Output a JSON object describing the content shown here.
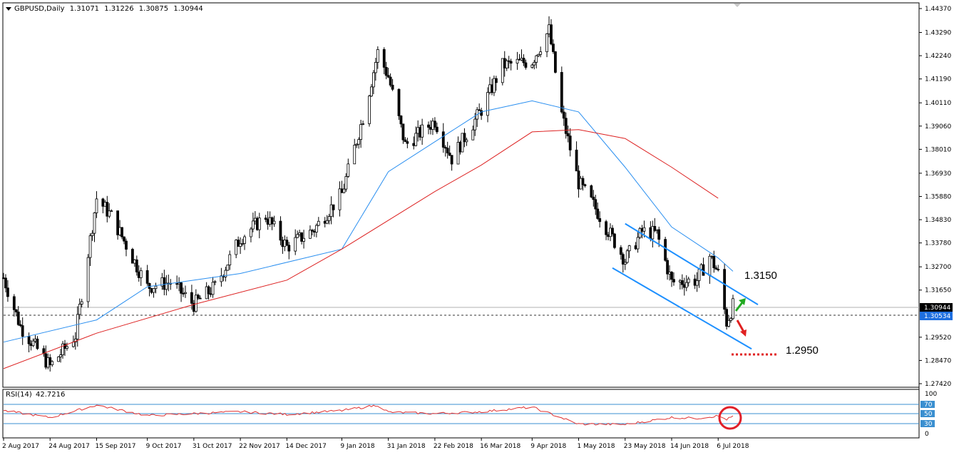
{
  "header": {
    "symbol": "GBPUSD,Daily",
    "open": "1.31071",
    "high": "1.31226",
    "low": "1.30875",
    "close": "1.30944"
  },
  "rsi": {
    "label": "RSI(14)",
    "value": "42.7216",
    "levels": [
      70,
      50,
      30
    ],
    "scale_top": "100",
    "scale_bottom": "0"
  },
  "price_axis": {
    "ticks": [
      "1.44370",
      "1.43290",
      "1.42240",
      "1.41190",
      "1.40110",
      "1.39060",
      "1.38010",
      "1.36930",
      "1.35880",
      "1.34830",
      "1.33780",
      "1.32700",
      "1.31650",
      "1.29520",
      "1.28470",
      "1.27420"
    ],
    "current_price": "1.30944",
    "line_price": "1.30534"
  },
  "date_axis": {
    "labels": [
      "2 Aug 2017",
      "24 Aug 2017",
      "15 Sep 2017",
      "9 Oct 2017",
      "31 Oct 2017",
      "22 Nov 2017",
      "14 Dec 2017",
      "9 Jan 2018",
      "31 Jan 2018",
      "22 Feb 2018",
      "16 Mar 2018",
      "9 Apr 2018",
      "1 May 2018",
      "23 May 2018",
      "14 Jun 2018",
      "6 Jul 2018"
    ]
  },
  "annotations": {
    "upper_target": "1.3150",
    "lower_target": "1.2950"
  },
  "colors": {
    "up_arrow": "#22aa22",
    "down_arrow": "#e02020",
    "channel": "#1e90ff",
    "ma_fast": "#2a8ff0",
    "ma_slow": "#dd2222",
    "rsi_line": "#e03030",
    "rsi_circle": "#e0202a",
    "current_price_box": "#000000",
    "line_price_box": "#1e6fe0"
  },
  "chart_data": {
    "type": "candlestick",
    "title": "GBPUSD,Daily",
    "ylim": [
      1.2742,
      1.4437
    ],
    "x_range": [
      "2 Aug 2017",
      "13 Jul 2018"
    ],
    "close_path": [
      [
        "2 Aug 2017",
        1.322
      ],
      [
        "10 Aug 2017",
        1.3
      ],
      [
        "24 Aug 2017",
        1.282
      ],
      [
        "5 Sep 2017",
        1.296
      ],
      [
        "15 Sep 2017",
        1.358
      ],
      [
        "22 Sep 2017",
        1.35
      ],
      [
        "9 Oct 2017",
        1.318
      ],
      [
        "20 Oct 2017",
        1.32
      ],
      [
        "31 Oct 2017",
        1.31
      ],
      [
        "10 Nov 2017",
        1.318
      ],
      [
        "22 Nov 2017",
        1.34
      ],
      [
        "4 Dec 2017",
        1.35
      ],
      [
        "14 Dec 2017",
        1.336
      ],
      [
        "27 Dec 2017",
        1.344
      ],
      [
        "9 Jan 2018",
        1.36
      ],
      [
        "20 Jan 2018",
        1.398
      ],
      [
        "26 Jan 2018",
        1.424
      ],
      [
        "31 Jan 2018",
        1.413
      ],
      [
        "8 Feb 2018",
        1.382
      ],
      [
        "22 Feb 2018",
        1.393
      ],
      [
        "2 Mar 2018",
        1.376
      ],
      [
        "16 Mar 2018",
        1.398
      ],
      [
        "26 Mar 2018",
        1.418
      ],
      [
        "9 Apr 2018",
        1.42
      ],
      [
        "17 Apr 2018",
        1.434
      ],
      [
        "23 Apr 2018",
        1.396
      ],
      [
        "1 May 2018",
        1.365
      ],
      [
        "8 May 2018",
        1.355
      ],
      [
        "23 May 2018",
        1.33
      ],
      [
        "31 May 2018",
        1.343
      ],
      [
        "7 Jun 2018",
        1.342
      ],
      [
        "14 Jun 2018",
        1.32
      ],
      [
        "26 Jun 2018",
        1.321
      ],
      [
        "2 Jul 2018",
        1.332
      ],
      [
        "6 Jul 2018",
        1.324
      ],
      [
        "10 Jul 2018",
        1.302
      ],
      [
        "13 Jul 2018",
        1.3094
      ]
    ],
    "ma_fast_path": [
      [
        "2 Aug 2017",
        1.293
      ],
      [
        "15 Sep 2017",
        1.303
      ],
      [
        "9 Oct 2017",
        1.318
      ],
      [
        "22 Nov 2017",
        1.324
      ],
      [
        "9 Jan 2018",
        1.335
      ],
      [
        "31 Jan 2018",
        1.37
      ],
      [
        "16 Mar 2018",
        1.397
      ],
      [
        "9 Apr 2018",
        1.402
      ],
      [
        "1 May 2018",
        1.397
      ],
      [
        "23 May 2018",
        1.372
      ],
      [
        "14 Jun 2018",
        1.345
      ],
      [
        "6 Jul 2018",
        1.331
      ],
      [
        "13 Jul 2018",
        1.325
      ]
    ],
    "ma_slow_path": [
      [
        "2 Aug 2017",
        1.281
      ],
      [
        "15 Sep 2017",
        1.297
      ],
      [
        "31 Oct 2017",
        1.31
      ],
      [
        "14 Dec 2017",
        1.321
      ],
      [
        "9 Jan 2018",
        1.335
      ],
      [
        "22 Feb 2018",
        1.361
      ],
      [
        "16 Mar 2018",
        1.373
      ],
      [
        "9 Apr 2018",
        1.388
      ],
      [
        "1 May 2018",
        1.389
      ],
      [
        "23 May 2018",
        1.385
      ],
      [
        "14 Jun 2018",
        1.372
      ],
      [
        "6 Jul 2018",
        1.358
      ]
    ],
    "channel": {
      "upper": [
        [
          "23 May 2018",
          1.3465
        ],
        [
          "13 Jul 2018",
          1.3125
        ]
      ],
      "lower": [
        [
          "17 May 2018",
          1.3265
        ],
        [
          "10 Jul 2018",
          1.2925
        ]
      ]
    },
    "targets": [
      1.315,
      1.295
    ],
    "rsi_series": [
      [
        "2 Aug 2017",
        58
      ],
      [
        "24 Aug 2017",
        40
      ],
      [
        "15 Sep 2017",
        72
      ],
      [
        "9 Oct 2017",
        45
      ],
      [
        "31 Oct 2017",
        50
      ],
      [
        "22 Nov 2017",
        55
      ],
      [
        "14 Dec 2017",
        48
      ],
      [
        "9 Jan 2018",
        58
      ],
      [
        "26 Jan 2018",
        72
      ],
      [
        "31 Jan 2018",
        54
      ],
      [
        "22 Feb 2018",
        50
      ],
      [
        "16 Mar 2018",
        55
      ],
      [
        "9 Apr 2018",
        67
      ],
      [
        "1 May 2018",
        23
      ],
      [
        "23 May 2018",
        22
      ],
      [
        "14 Jun 2018",
        40
      ],
      [
        "26 Jun 2018",
        38
      ],
      [
        "6 Jul 2018",
        44
      ],
      [
        "10 Jul 2018",
        35
      ],
      [
        "13 Jul 2018",
        42.7216
      ]
    ]
  }
}
